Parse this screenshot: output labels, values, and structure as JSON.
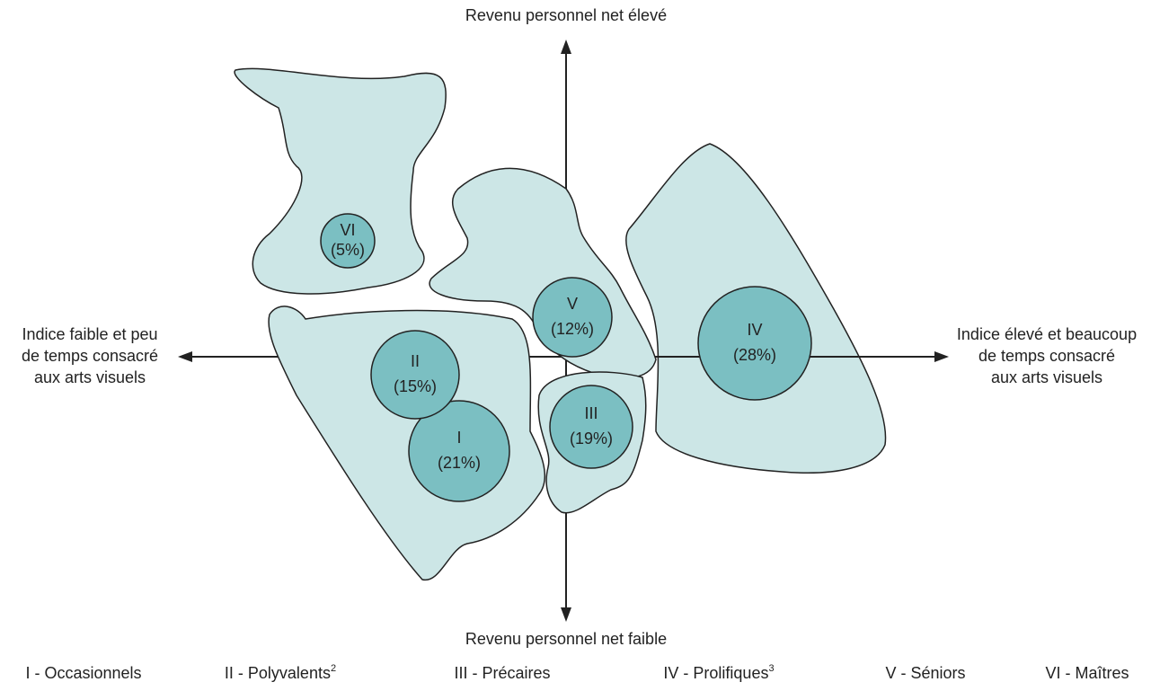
{
  "axes": {
    "top": "Revenu personnel net élevé",
    "bottom": "Revenu personnel net faible",
    "left": [
      "Indice faible et peu",
      "de temps consacré",
      "aux arts visuels"
    ],
    "right": [
      "Indice élevé et beaucoup",
      "de temps consacré",
      "aux arts visuels"
    ]
  },
  "clusters": [
    {
      "label": "I",
      "share": "(21%)"
    },
    {
      "label": "II",
      "share": "(15%)"
    },
    {
      "label": "III",
      "share": "(19%)"
    },
    {
      "label": "IV",
      "share": "(28%)"
    },
    {
      "label": "V",
      "share": "(12%)"
    },
    {
      "label": "VI",
      "share": "(5%)"
    }
  ],
  "legend": [
    {
      "text": "I - Occasionnels"
    },
    {
      "text": "II - Polyvalents",
      "note": "2"
    },
    {
      "text": "III - Précaires"
    },
    {
      "text": "IV - Prolifiques",
      "note": "3"
    },
    {
      "text": "V - Séniors"
    },
    {
      "text": "VI - Maîtres"
    }
  ]
}
